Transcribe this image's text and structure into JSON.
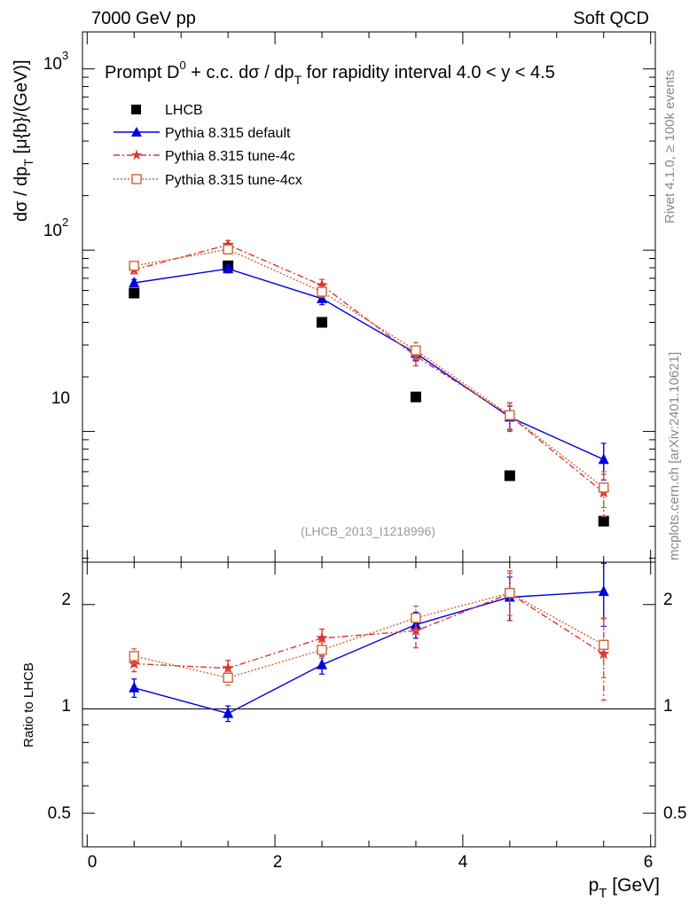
{
  "header": {
    "left": "7000 GeV pp",
    "right": "Soft QCD"
  },
  "side_labels": {
    "rivet": "Rivet 4.1.0, ≥ 100k events",
    "mcplots": "mcplots.cern.ch [arXiv:2401.10621]"
  },
  "colors": {
    "data": "#000000",
    "default": "#0000dd",
    "tune4c": "#dd3333",
    "tune4cx": "#cc6633"
  },
  "chart_data": [
    {
      "type": "scatter",
      "title_main": "Prompt D",
      "title_sup": "0",
      "title_mid": " + c.c.  dσ / dp",
      "title_sub": "T",
      "title_end": " for rapidity interval 4.0 < y < 4.5",
      "ylabel_main": "dσ / dp",
      "ylabel_sub": "T",
      "ylabel_unit": " [μ{b}/(GeV)]",
      "xlabel_main": "p",
      "xlabel_sub": "T",
      "xlabel_unit": " [GeV]",
      "yscale": "log",
      "xlim": [
        -0.05,
        6.05
      ],
      "ylim": [
        1.9,
        1600
      ],
      "ytick_labels": {
        "10": "10",
        "100": "10",
        "1000": "10"
      },
      "ytick_exponents": {
        "100": "2",
        "1000": "3"
      },
      "annotation": "(LHCB_2013_I1218996)",
      "legend_position": "top-left",
      "x": [
        0.5,
        1.5,
        2.5,
        3.5,
        4.5,
        5.5
      ],
      "series": [
        {
          "key": "data",
          "name": "LHCB",
          "marker": "square",
          "values": [
            58,
            82,
            40,
            15.5,
            5.7,
            3.2
          ],
          "errors": [
            0,
            0,
            0,
            0,
            0,
            0
          ]
        },
        {
          "key": "default",
          "name": "Pythia 8.315 default",
          "marker": "triangle",
          "values": [
            66,
            79,
            54,
            27,
            12,
            7
          ],
          "errors": [
            3,
            4,
            4,
            2.5,
            1.8,
            1.6
          ]
        },
        {
          "key": "tune4c",
          "name": "Pythia 8.315 tune-4c",
          "marker": "star",
          "values": [
            78,
            107,
            64,
            26,
            12.2,
            4.6
          ],
          "errors": [
            4,
            6,
            5,
            3,
            2.2,
            1.2
          ]
        },
        {
          "key": "tune4cx",
          "name": "Pythia 8.315 tune-4cx",
          "marker": "opensquare",
          "values": [
            82,
            101,
            59,
            28,
            12.3,
            4.9
          ],
          "errors": [
            4,
            5,
            4,
            3,
            2,
            1.1
          ]
        }
      ]
    },
    {
      "type": "line",
      "ylabel": "Ratio to LHCB",
      "yscale": "log",
      "xlim": [
        -0.05,
        6.05
      ],
      "ylim": [
        0.4,
        2.65
      ],
      "yticks": [
        0.5,
        1,
        2
      ],
      "ytick_labels": [
        "0.5",
        "1",
        "2"
      ],
      "xticks": [
        0,
        2,
        4,
        6
      ],
      "xtick_labels": [
        "0",
        "2",
        "4",
        "6"
      ],
      "x": [
        0.5,
        1.5,
        2.5,
        3.5,
        4.5,
        5.5
      ],
      "series": [
        {
          "key": "default",
          "name": "Pythia 8.315 default",
          "marker": "triangle",
          "values": [
            1.15,
            0.97,
            1.34,
            1.75,
            2.1,
            2.18
          ],
          "errors": [
            0.07,
            0.05,
            0.08,
            0.15,
            0.3,
            0.45
          ]
        },
        {
          "key": "tune4c",
          "name": "Pythia 8.315 tune-4c",
          "marker": "star",
          "values": [
            1.35,
            1.31,
            1.6,
            1.68,
            2.15,
            1.44
          ],
          "errors": [
            0.07,
            0.07,
            0.1,
            0.18,
            0.35,
            0.38
          ]
        },
        {
          "key": "tune4cx",
          "name": "Pythia 8.315 tune-4cx",
          "marker": "opensquare",
          "values": [
            1.42,
            1.23,
            1.48,
            1.83,
            2.16,
            1.53
          ],
          "errors": [
            0.07,
            0.06,
            0.08,
            0.15,
            0.3,
            0.3
          ]
        }
      ]
    }
  ]
}
